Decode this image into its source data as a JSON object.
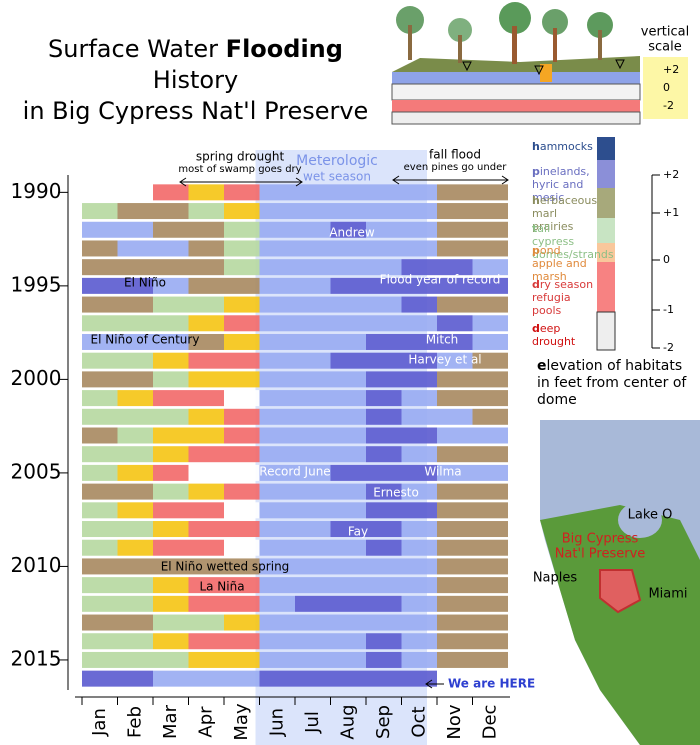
{
  "title": {
    "line1": [
      "Surface Water ",
      "Flooding",
      " History"
    ],
    "line2": "in Big Cypress Nat'l Preserve"
  },
  "chart_data": {
    "type": "heatmap",
    "categories": [
      "Jan",
      "Feb",
      "Mar",
      "Apr",
      "May",
      "Jun",
      "Jul",
      "Aug",
      "Sep",
      "Oct",
      "Nov",
      "Dec"
    ],
    "y": [
      1990,
      1991,
      1992,
      1993,
      1994,
      1995,
      1996,
      1997,
      1998,
      1999,
      2000,
      2001,
      2002,
      2003,
      2004,
      2005,
      2006,
      2007,
      2008,
      2009,
      2010,
      2011,
      2012,
      2013,
      2014,
      2015,
      2016
    ],
    "ylim": [
      1989.5,
      2016.5
    ],
    "yticks": [
      1990,
      1995,
      2000,
      2005,
      2010,
      2015
    ],
    "level_colors": [
      "#ffffff",
      "#f26b6b",
      "#f5c518",
      "#b7d9a2",
      "#a98b63",
      "#9aadf2",
      "#5d5dd0"
    ],
    "values": [
      [
        0,
        0,
        1,
        2,
        1,
        5,
        5,
        5,
        5,
        5,
        4,
        4
      ],
      [
        3,
        4,
        4,
        3,
        2,
        5,
        5,
        5,
        5,
        5,
        4,
        4
      ],
      [
        5,
        5,
        4,
        4,
        3,
        5,
        5,
        6,
        5,
        5,
        4,
        4
      ],
      [
        4,
        5,
        5,
        4,
        3,
        5,
        5,
        5,
        5,
        5,
        4,
        4
      ],
      [
        4,
        4,
        4,
        4,
        3,
        5,
        5,
        5,
        5,
        6,
        6,
        5
      ],
      [
        6,
        6,
        5,
        4,
        4,
        5,
        5,
        6,
        6,
        6,
        6,
        6
      ],
      [
        4,
        4,
        3,
        3,
        2,
        5,
        5,
        5,
        5,
        6,
        4,
        4
      ],
      [
        3,
        3,
        3,
        2,
        1,
        5,
        5,
        5,
        5,
        5,
        6,
        5
      ],
      [
        5,
        5,
        5,
        4,
        2,
        5,
        5,
        5,
        6,
        6,
        6,
        5
      ],
      [
        3,
        3,
        2,
        1,
        1,
        5,
        5,
        6,
        6,
        6,
        5,
        4
      ],
      [
        4,
        4,
        3,
        2,
        2,
        5,
        5,
        5,
        6,
        6,
        4,
        4
      ],
      [
        3,
        2,
        1,
        1,
        0,
        5,
        5,
        5,
        6,
        5,
        4,
        4
      ],
      [
        3,
        3,
        3,
        2,
        1,
        5,
        5,
        5,
        6,
        5,
        5,
        4
      ],
      [
        4,
        3,
        2,
        2,
        1,
        5,
        5,
        5,
        6,
        6,
        5,
        5
      ],
      [
        3,
        3,
        2,
        1,
        1,
        5,
        5,
        5,
        6,
        5,
        4,
        4
      ],
      [
        3,
        2,
        1,
        0,
        0,
        5,
        5,
        6,
        6,
        6,
        5,
        5
      ],
      [
        4,
        4,
        3,
        2,
        1,
        5,
        5,
        5,
        6,
        5,
        4,
        4
      ],
      [
        3,
        2,
        1,
        1,
        0,
        5,
        5,
        5,
        6,
        6,
        4,
        4
      ],
      [
        3,
        3,
        2,
        1,
        1,
        5,
        5,
        6,
        6,
        5,
        4,
        4
      ],
      [
        3,
        2,
        1,
        1,
        0,
        5,
        5,
        5,
        6,
        5,
        4,
        4
      ],
      [
        4,
        4,
        4,
        4,
        4,
        5,
        5,
        5,
        5,
        5,
        4,
        4
      ],
      [
        3,
        3,
        2,
        1,
        1,
        5,
        5,
        5,
        5,
        5,
        4,
        4
      ],
      [
        3,
        3,
        2,
        1,
        1,
        5,
        6,
        6,
        6,
        5,
        4,
        4
      ],
      [
        4,
        4,
        3,
        3,
        2,
        5,
        5,
        5,
        5,
        5,
        4,
        4
      ],
      [
        3,
        3,
        2,
        1,
        1,
        5,
        5,
        5,
        6,
        5,
        4,
        4
      ],
      [
        3,
        3,
        3,
        2,
        2,
        5,
        5,
        5,
        6,
        5,
        4,
        4
      ],
      [
        6,
        6,
        5,
        5,
        5,
        6,
        6,
        6,
        6,
        6,
        null,
        null
      ]
    ],
    "annotations": [
      "Andrew",
      "El Niño",
      "Flood year of record",
      "El Niño of Century",
      "Mitch",
      "Harvey et al",
      "Record June",
      "Wilma",
      "Ernesto",
      "Fay",
      "El Niño wetted spring",
      "La Niña"
    ],
    "spring_label": [
      "spring drought",
      "most of swamp goes dry"
    ],
    "wet_label": [
      "Meterologic",
      "wet season"
    ],
    "fall_label": [
      "fall flood",
      "even pines go under"
    ],
    "here_label": "We are HERE"
  },
  "habitat_legend": {
    "items": [
      {
        "name": "hammocks",
        "color": "#2d4e8e",
        "text_color": "#2d4e8e"
      },
      {
        "name": "pinelands, hyric and mesic",
        "color": "#8b8fd8",
        "text_color": "#6a6fc0"
      },
      {
        "name": "herbaceous marl prairies",
        "color": "#a7a97b",
        "text_color": "#8a8c5e"
      },
      {
        "name": "tall cypress domes/strands",
        "color": "#c8e4c3",
        "text_color": "#8cbf86"
      },
      {
        "name": "pond apple and marsh",
        "color": "#f9c79b",
        "text_color": "#e08a3c"
      },
      {
        "name": "dry season refugia pools",
        "color": "#f78282",
        "text_color": "#d83a3a"
      },
      {
        "name": "deep drought",
        "color": "#eeeeee",
        "text_color": "#d01010"
      }
    ],
    "axis_ticks": [
      "+2",
      "+1",
      "0",
      "-1",
      "-2"
    ],
    "caption": "elevation of habitats in feet from center of dome"
  },
  "vertical_scale": {
    "label": [
      "vertical",
      "scale"
    ],
    "ticks": [
      "+2",
      "0",
      "-2"
    ]
  },
  "map": {
    "lake": "Lake O",
    "preserve": [
      "Big Cypress",
      "Nat'l Preserve"
    ],
    "naples": "Naples",
    "miami": "Miami"
  }
}
